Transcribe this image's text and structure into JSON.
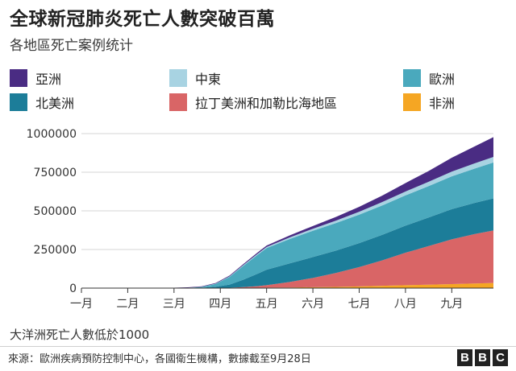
{
  "title": "全球新冠肺炎死亡人數突破百萬",
  "subtitle": "各地區死亡案例统计",
  "legend": [
    {
      "key": "asia",
      "label": "亞洲",
      "color": "#4a2c83"
    },
    {
      "key": "middle_east",
      "label": "中東",
      "color": "#a8d3e2"
    },
    {
      "key": "europe",
      "label": "歐洲",
      "color": "#4aa9bd"
    },
    {
      "key": "north_america",
      "label": "北美洲",
      "color": "#1c7d99"
    },
    {
      "key": "latin_america",
      "label": "拉丁美洲和加勒比海地區",
      "color": "#d96566"
    },
    {
      "key": "africa",
      "label": "非洲",
      "color": "#f5a623"
    }
  ],
  "note": "大洋洲死亡人數低於1000",
  "source": "來源：歐洲疾病預防控制中心，各國衛生機構，數據截至9月28日",
  "brand": [
    "B",
    "B",
    "C"
  ],
  "chart_data": {
    "type": "area",
    "stacked": true,
    "title": "全球新冠肺炎死亡人數突破百萬",
    "subtitle": "各地區死亡案例统计",
    "x_unit": "month index (1 = 1月1日)",
    "xlim": [
      1,
      9.9
    ],
    "ylim": [
      0,
      1000000
    ],
    "y_ticks": [
      {
        "value": 0,
        "label": "0"
      },
      {
        "value": 250000,
        "label": "250000"
      },
      {
        "value": 500000,
        "label": "500000"
      },
      {
        "value": 750000,
        "label": "750000"
      },
      {
        "value": 1000000,
        "label": "1000000"
      }
    ],
    "x_ticks": [
      {
        "value": 1,
        "label": "一月"
      },
      {
        "value": 2,
        "label": "二月"
      },
      {
        "value": 3,
        "label": "三月"
      },
      {
        "value": 4,
        "label": "四月"
      },
      {
        "value": 5,
        "label": "五月"
      },
      {
        "value": 6,
        "label": "六月"
      },
      {
        "value": 7,
        "label": "七月"
      },
      {
        "value": 8,
        "label": "八月"
      },
      {
        "value": 9,
        "label": "九月"
      }
    ],
    "x": [
      1,
      2,
      2.7,
      3,
      3.3,
      3.6,
      3.9,
      4.2,
      4.5,
      4.8,
      5,
      5.5,
      6,
      6.5,
      7,
      7.5,
      8,
      8.5,
      9,
      9.5,
      9.9
    ],
    "series": [
      {
        "key": "africa",
        "name": "非洲",
        "values": [
          0,
          0,
          0,
          0,
          0,
          100,
          300,
          800,
          1500,
          2500,
          3000,
          4000,
          6000,
          8000,
          11000,
          15000,
          19000,
          22000,
          26000,
          30000,
          33000
        ]
      },
      {
        "key": "latin_america",
        "name": "拉丁美洲和加勒比海地區",
        "values": [
          0,
          0,
          0,
          0,
          0,
          200,
          800,
          2000,
          5000,
          10000,
          16000,
          36000,
          60000,
          90000,
          125000,
          165000,
          210000,
          250000,
          290000,
          320000,
          340000
        ]
      },
      {
        "key": "north_america",
        "name": "北美洲",
        "values": [
          0,
          0,
          0,
          0,
          500,
          2000,
          8000,
          20000,
          48000,
          80000,
          100000,
          120000,
          135000,
          145000,
          155000,
          165000,
          175000,
          185000,
          195000,
          202000,
          208000
        ]
      },
      {
        "key": "europe",
        "name": "歐洲",
        "values": [
          0,
          0,
          0,
          200,
          1500,
          5000,
          18000,
          50000,
          90000,
          122000,
          140000,
          158000,
          170000,
          178000,
          184000,
          190000,
          196000,
          203000,
          212000,
          222000,
          232000
        ]
      },
      {
        "key": "middle_east",
        "name": "中東",
        "values": [
          0,
          0,
          0,
          100,
          400,
          1000,
          2000,
          3500,
          5000,
          6500,
          7500,
          10000,
          13000,
          16000,
          19000,
          22000,
          25000,
          28000,
          31000,
          34000,
          36000
        ]
      },
      {
        "key": "asia",
        "name": "亞洲",
        "values": [
          0,
          0,
          1000,
          2500,
          3000,
          3500,
          4000,
          5000,
          6500,
          8000,
          9000,
          13000,
          18000,
          24000,
          32000,
          42000,
          55000,
          70000,
          90000,
          110000,
          128000
        ]
      }
    ]
  }
}
